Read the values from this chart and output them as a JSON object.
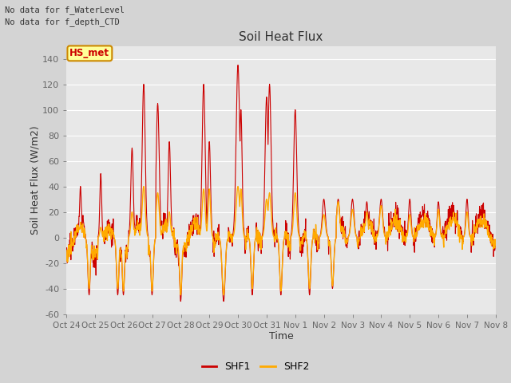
{
  "title": "Soil Heat Flux",
  "xlabel": "Time",
  "ylabel": "Soil Heat Flux (W/m2)",
  "ylim": [
    -60,
    150
  ],
  "yticks": [
    -60,
    -40,
    -20,
    0,
    20,
    40,
    60,
    80,
    100,
    120,
    140
  ],
  "xtick_labels": [
    "Oct 24",
    "Oct 25",
    "Oct 26",
    "Oct 27",
    "Oct 28",
    "Oct 29",
    "Oct 30",
    "Oct 31",
    "Nov 1",
    "Nov 2",
    "Nov 3",
    "Nov 4",
    "Nov 5",
    "Nov 6",
    "Nov 7",
    "Nov 8"
  ],
  "shf1_color": "#cc0000",
  "shf2_color": "#ffaa00",
  "fig_bg_color": "#d4d4d4",
  "plot_bg_color": "#e8e8e8",
  "legend_items": [
    "SHF1",
    "SHF2"
  ],
  "text_annotations": [
    "No data for f_WaterLevel",
    "No data for f_depth_CTD"
  ],
  "hs_met_label": "HS_met",
  "hs_met_bg": "#ffff99",
  "hs_met_border": "#cc8800",
  "hs_met_text_color": "#cc0000",
  "n_points": 1440,
  "seed": 42
}
